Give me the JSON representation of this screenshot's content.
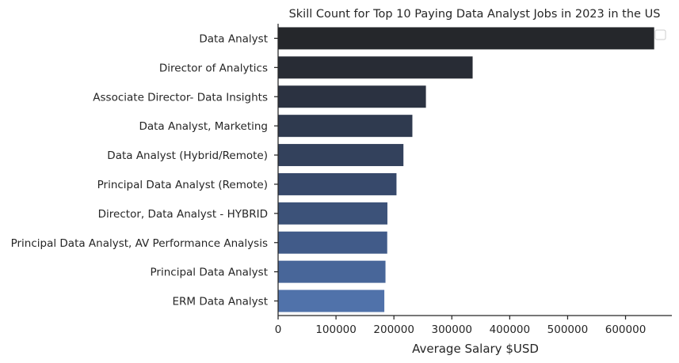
{
  "chart_data": {
    "type": "bar",
    "orientation": "horizontal",
    "title": "Skill Count for Top 10 Paying Data Analyst Jobs in 2023 in the US",
    "xlabel": "Average Salary $USD",
    "ylabel": "",
    "xlim": [
      0,
      680000
    ],
    "xticks": [
      0,
      100000,
      200000,
      300000,
      400000,
      500000,
      600000
    ],
    "xtick_labels": [
      "0",
      "100000",
      "200000",
      "300000",
      "400000",
      "500000",
      "600000"
    ],
    "categories": [
      "Data Analyst",
      "Director of Analytics",
      "Associate Director- Data Insights",
      "Data Analyst, Marketing",
      "Data Analyst (Hybrid/Remote)",
      "Principal Data Analyst (Remote)",
      "Director, Data Analyst - HYBRID",
      "Principal Data Analyst, AV Performance Analysis",
      "Principal Data Analyst",
      "ERM Data Analyst"
    ],
    "values": [
      650000,
      336500,
      255830,
      232424,
      217000,
      205000,
      189309,
      189000,
      186000,
      184000
    ],
    "colors": [
      "#25272b",
      "#282c35",
      "#2b3241",
      "#2f3a4f",
      "#33415c",
      "#37496b",
      "#3c5279",
      "#415b89",
      "#486699",
      "#5072aa"
    ],
    "grid": false,
    "legend": "top-right (empty)"
  }
}
